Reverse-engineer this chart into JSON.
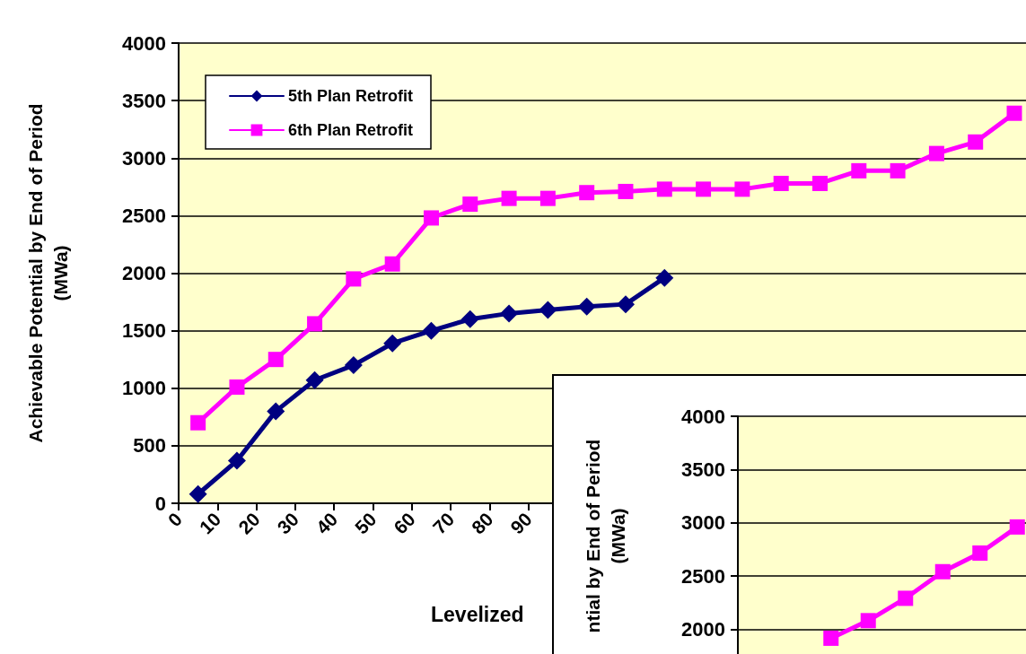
{
  "chart_data": [
    {
      "type": "line",
      "xlabel": "Levelized",
      "ylabel": "Achievable Potential by End of Period\n(MWa)",
      "xlim": [
        0,
        218
      ],
      "xticks": [
        0,
        10,
        20,
        30,
        40,
        50,
        60,
        70,
        80,
        90
      ],
      "ylim": [
        0,
        4000
      ],
      "yticks": [
        0,
        500,
        1000,
        1500,
        2000,
        2500,
        3000,
        3500,
        4000
      ],
      "grid": "y",
      "legend": "top left",
      "series": [
        {
          "name": "5th Plan Retrofit",
          "color": "#000080",
          "marker": "diamond",
          "x": [
            5,
            15,
            25,
            35,
            45,
            55,
            65,
            75,
            85,
            95,
            105,
            115,
            125
          ],
          "values": [
            80,
            370,
            800,
            1070,
            1200,
            1390,
            1500,
            1600,
            1650,
            1680,
            1710,
            1730,
            1960
          ]
        },
        {
          "name": "6th Plan Retrofit",
          "color": "#ff00ff",
          "marker": "square",
          "x": [
            5,
            15,
            25,
            35,
            45,
            55,
            65,
            75,
            85,
            95,
            105,
            115,
            125,
            135,
            145,
            155,
            165,
            175,
            185,
            195,
            205,
            215
          ],
          "values": [
            700,
            1010,
            1250,
            1560,
            1950,
            2080,
            2480,
            2600,
            2650,
            2650,
            2700,
            2710,
            2730,
            2730,
            2730,
            2780,
            2780,
            2890,
            2890,
            3040,
            3140,
            3390
          ]
        }
      ]
    },
    {
      "type": "line",
      "ylabel": "ntial by End of Period\n(MWa)",
      "categories": [
        null,
        null,
        null,
        null,
        null,
        null,
        null,
        null
      ],
      "ylim": [
        1750,
        4000
      ],
      "yticks": [
        2000,
        2500,
        3000,
        3500,
        4000
      ],
      "grid": "y",
      "tick_labels": "y",
      "series": [
        {
          "color": "#ff00ff",
          "marker": "square",
          "values": [
            null,
            null,
            1915,
            2080,
            2290,
            2540,
            2715,
            2960
          ]
        }
      ]
    }
  ]
}
